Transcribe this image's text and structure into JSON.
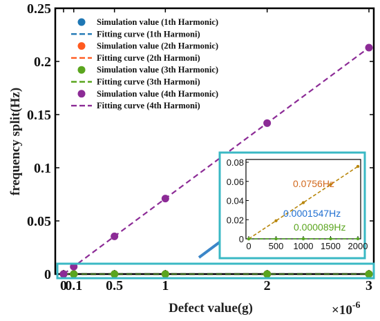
{
  "chart_data": [
    {
      "type": "scatter",
      "title": "",
      "xlabel": "Defect value(g)",
      "ylabel": "frequency split(Hz)",
      "x_exponent_label": "×10",
      "x_exponent_power": "-6",
      "xlim": [
        0,
        3
      ],
      "ylim": [
        0,
        0.25
      ],
      "grid": false,
      "legend_position": "top-left",
      "x_tick_labels": [
        "0",
        "0.1",
        "0.5",
        "1",
        "2",
        "3"
      ],
      "x_ticks": [
        0,
        0.1,
        0.5,
        1,
        2,
        3
      ],
      "y_tick_labels": [
        "0",
        "0.05",
        "0.1",
        "0.15",
        "0.2",
        "0.25"
      ],
      "y_ticks": [
        0,
        0.05,
        0.1,
        0.15,
        0.2,
        0.25
      ],
      "x": [
        0,
        0.1,
        0.5,
        1,
        2,
        3
      ],
      "series": [
        {
          "legend": "Simulation value (1th Harmonic)",
          "fit_legend": "Fitting curve (1th Harmoni)",
          "color": "#1f77b4",
          "values": [
            0,
            2e-06,
            5e-06,
            1e-05,
            2e-05,
            3e-05
          ]
        },
        {
          "legend": "Simulation value (2th Harmonic)",
          "fit_legend": "Fitting curve (2th Harmoni)",
          "color": "#ff5a1f",
          "values": [
            0,
            1.2e-06,
            3e-06,
            6e-06,
            1.2e-05,
            1.8e-05
          ]
        },
        {
          "legend": "Simulation value (3th Harmonic)",
          "fit_legend": "Fitting curve (3th Harmoni)",
          "color": "#5aa51e",
          "values": [
            0,
            9e-07,
            4.5e-06,
            9e-06,
            1.8e-05,
            2.7e-05
          ]
        },
        {
          "legend": "Simulation value (4th Harmonic)",
          "fit_legend": "Fitting curve (4th Harmoni)",
          "color": "#8c2b96",
          "values": [
            0,
            0.007,
            0.0355,
            0.071,
            0.142,
            0.213
          ]
        }
      ]
    },
    {
      "type": "line",
      "title": "",
      "xlim": [
        0,
        2000
      ],
      "ylim": [
        0,
        0.08
      ],
      "x_tick_labels": [
        "0",
        "500",
        "1000",
        "1500",
        "2000"
      ],
      "x_ticks": [
        0,
        500,
        1000,
        1500,
        2000
      ],
      "y_tick_labels": [
        "0",
        "0.02",
        "0.04",
        "0.06",
        "0.08"
      ],
      "y_ticks": [
        0,
        0.02,
        0.04,
        0.06,
        0.08
      ],
      "x": [
        0,
        500,
        1000,
        1500,
        2000
      ],
      "series": [
        {
          "color": "#1f77b4",
          "values": [
            0,
            3.87e-05,
            7.74e-05,
            0.000116,
            0.0001547
          ]
        },
        {
          "color": "#b8860b",
          "values": [
            0,
            0.0189,
            0.0378,
            0.0567,
            0.0756
          ]
        },
        {
          "color": "#5aa51e",
          "values": [
            0,
            2.23e-05,
            4.45e-05,
            6.68e-05,
            8.9e-05
          ]
        }
      ],
      "annotations": [
        {
          "text": "0.0756Hz",
          "color": "#d2691e"
        },
        {
          "text": "0.0001547Hz",
          "color": "#1f6fd1"
        },
        {
          "text": "0.000089Hz",
          "color": "#5aa51e"
        }
      ]
    }
  ],
  "colors": {
    "highlight": "#3ab8c4",
    "arrow": "#3b86c8"
  }
}
